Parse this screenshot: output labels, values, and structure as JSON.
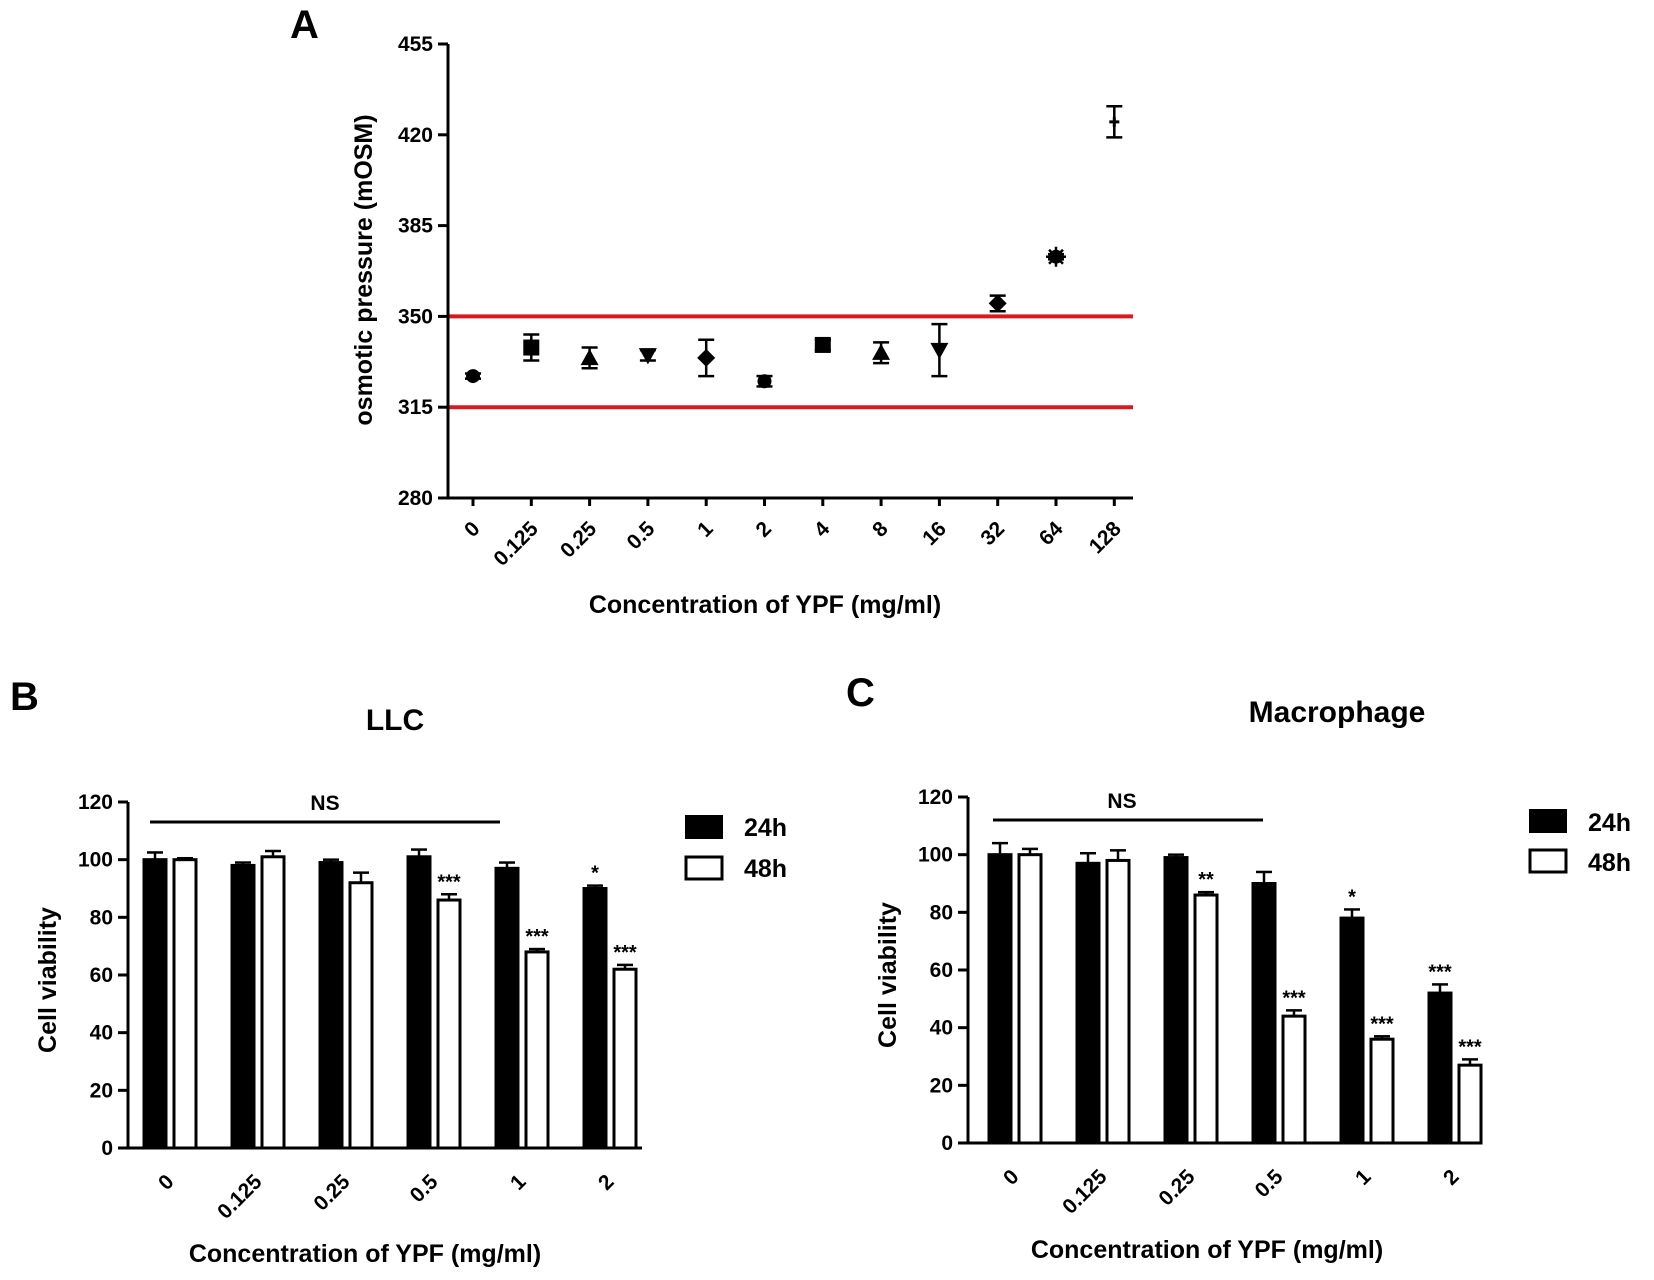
{
  "chart_data": [
    {
      "panel": "A",
      "type": "scatter",
      "title": "",
      "xlabel": "Concentration of YPF (mg/ml)",
      "ylabel": "osmotic pressure (mOSM)",
      "ylim": [
        280,
        455
      ],
      "yticks": [
        "280",
        "315",
        "350",
        "385",
        "420",
        "455"
      ],
      "categories": [
        "0",
        "0.125",
        "0.25",
        "0.5",
        "1",
        "2",
        "4",
        "8",
        "16",
        "32",
        "64",
        "128"
      ],
      "values": [
        327,
        338,
        334,
        335,
        334,
        325,
        339,
        336,
        337,
        355,
        373,
        425
      ],
      "errors": [
        1,
        5,
        4,
        2,
        7,
        2,
        2,
        4,
        10,
        3,
        1,
        6
      ],
      "markers": [
        "circle",
        "square",
        "triangle-up",
        "triangle-down",
        "diamond",
        "circle",
        "square",
        "triangle-up",
        "triangle-down",
        "diamond",
        "star",
        "cross"
      ],
      "reference_lines": [
        315,
        350
      ],
      "reference_line_color": "#d61a1f"
    },
    {
      "panel": "B",
      "type": "bar",
      "title": "LLC",
      "xlabel": "Concentration of YPF (mg/ml)",
      "ylabel": "Cell viability",
      "ylim": [
        0,
        120
      ],
      "yticks": [
        "0",
        "20",
        "40",
        "60",
        "80",
        "100",
        "120"
      ],
      "categories": [
        "0",
        "0.125",
        "0.25",
        "0.5",
        "1",
        "2"
      ],
      "series": [
        {
          "name": "24h",
          "fill": "#000000",
          "values": [
            100,
            98,
            99,
            101,
            97,
            90
          ],
          "errors": [
            2.5,
            1,
            1,
            2.5,
            2,
            1
          ],
          "labels": [
            "",
            "",
            "",
            "",
            "",
            "*"
          ]
        },
        {
          "name": "48h",
          "fill": "#ffffff",
          "values": [
            100,
            101,
            92,
            86,
            68,
            62
          ],
          "errors": [
            0.5,
            2,
            3.5,
            2,
            1,
            1.5
          ],
          "labels": [
            "",
            "",
            "",
            "***",
            "***",
            "***"
          ]
        }
      ],
      "ns_label": "NS",
      "ns_span": [
        "0",
        "1"
      ],
      "legend": "top-right"
    },
    {
      "panel": "C",
      "type": "bar",
      "title": "Macrophage",
      "xlabel": "Concentration of YPF (mg/ml)",
      "ylabel": "Cell viability",
      "ylim": [
        0,
        120
      ],
      "yticks": [
        "0",
        "20",
        "40",
        "60",
        "80",
        "100",
        "120"
      ],
      "categories": [
        "0",
        "0.125",
        "0.25",
        "0.5",
        "1",
        "2"
      ],
      "series": [
        {
          "name": "24h",
          "fill": "#000000",
          "values": [
            100,
            97,
            99,
            90,
            78,
            52
          ],
          "errors": [
            4,
            3.5,
            1,
            4,
            3,
            3
          ],
          "labels": [
            "",
            "",
            "",
            "",
            "*",
            "***"
          ]
        },
        {
          "name": "48h",
          "fill": "#ffffff",
          "values": [
            100,
            98,
            86,
            44,
            36,
            27
          ],
          "errors": [
            2,
            3.5,
            1,
            2,
            1,
            2
          ],
          "labels": [
            "",
            "",
            "**",
            "***",
            "***",
            "***"
          ]
        }
      ],
      "ns_label": "NS",
      "ns_span": [
        "0",
        "0.5"
      ],
      "legend": "top-right"
    }
  ]
}
